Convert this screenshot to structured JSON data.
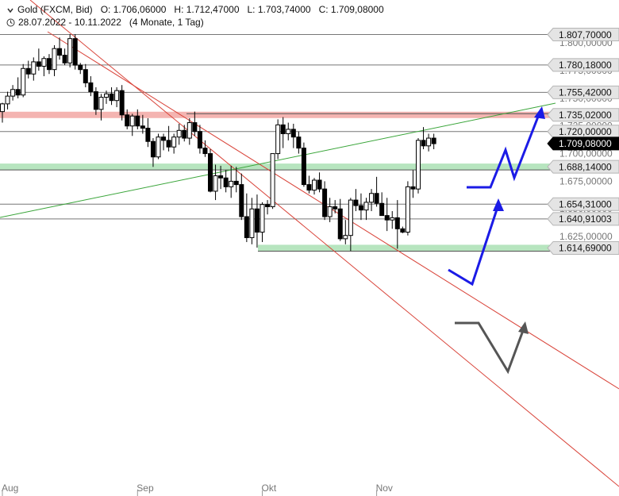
{
  "header": {
    "instrument": "Gold (FXCM, Bid)",
    "open": "O: 1.706,06000",
    "high": "H: 1.712,47000",
    "low": "L: 1.703,74000",
    "close": "C: 1.709,08000",
    "date_range": "28.07.2022 - 10.11.2022",
    "duration": "(4 Monate, 1 Tag)"
  },
  "chart_data": {
    "type": "candlestick",
    "ylim": [
      1605,
      1815
    ],
    "y_ticks": [
      1625,
      1650,
      1675,
      1700,
      1725,
      1750,
      1775,
      1800
    ],
    "y_tick_labels": [
      "1.625,00000",
      "1.650,00000",
      "1.675,00000",
      "1.700,00000",
      "1.725,00000",
      "1.750,00000",
      "1.775,00000",
      "1.800,00000"
    ],
    "x_labels": [
      {
        "label": "Aug",
        "index": 0
      },
      {
        "label": "Sep",
        "index": 26
      },
      {
        "label": "Okt",
        "index": 50
      },
      {
        "label": "Nov",
        "index": 72
      }
    ],
    "candles": [
      [
        1738,
        1746,
        1728,
        1745
      ],
      [
        1745,
        1756,
        1740,
        1752
      ],
      [
        1752,
        1762,
        1748,
        1758
      ],
      [
        1758,
        1769,
        1750,
        1753
      ],
      [
        1753,
        1781,
        1751,
        1777
      ],
      [
        1777,
        1784,
        1768,
        1772
      ],
      [
        1772,
        1787,
        1766,
        1783
      ],
      [
        1783,
        1795,
        1775,
        1779
      ],
      [
        1779,
        1788,
        1770,
        1786
      ],
      [
        1786,
        1790,
        1772,
        1776
      ],
      [
        1776,
        1798,
        1770,
        1795
      ],
      [
        1795,
        1805,
        1785,
        1789
      ],
      [
        1789,
        1795,
        1780,
        1782
      ],
      [
        1782,
        1808,
        1778,
        1804
      ],
      [
        1804,
        1808,
        1776,
        1780
      ],
      [
        1780,
        1782,
        1772,
        1776
      ],
      [
        1776,
        1781,
        1760,
        1764
      ],
      [
        1764,
        1770,
        1752,
        1756
      ],
      [
        1756,
        1760,
        1735,
        1740
      ],
      [
        1740,
        1754,
        1730,
        1751
      ],
      [
        1751,
        1757,
        1745,
        1754
      ],
      [
        1754,
        1760,
        1744,
        1748
      ],
      [
        1748,
        1760,
        1742,
        1757
      ],
      [
        1757,
        1762,
        1730,
        1735
      ],
      [
        1735,
        1740,
        1722,
        1725
      ],
      [
        1725,
        1736,
        1716,
        1734
      ],
      [
        1734,
        1740,
        1722,
        1725
      ],
      [
        1725,
        1735,
        1718,
        1723
      ],
      [
        1723,
        1732,
        1706,
        1711
      ],
      [
        1711,
        1714,
        1688,
        1697
      ],
      [
        1697,
        1718,
        1695,
        1715
      ],
      [
        1715,
        1718,
        1703,
        1712
      ],
      [
        1712,
        1725,
        1702,
        1706
      ],
      [
        1706,
        1718,
        1700,
        1715
      ],
      [
        1715,
        1727,
        1708,
        1721
      ],
      [
        1721,
        1726,
        1711,
        1714
      ],
      [
        1714,
        1732,
        1708,
        1728
      ],
      [
        1728,
        1738,
        1716,
        1720
      ],
      [
        1720,
        1726,
        1700,
        1705
      ],
      [
        1705,
        1712,
        1697,
        1700
      ],
      [
        1700,
        1704,
        1665,
        1666
      ],
      [
        1666,
        1690,
        1658,
        1680
      ],
      [
        1680,
        1689,
        1668,
        1678
      ],
      [
        1678,
        1685,
        1665,
        1670
      ],
      [
        1670,
        1689,
        1660,
        1675
      ],
      [
        1675,
        1688,
        1665,
        1672
      ],
      [
        1672,
        1682,
        1640,
        1643
      ],
      [
        1643,
        1664,
        1620,
        1624
      ],
      [
        1624,
        1660,
        1618,
        1650
      ],
      [
        1650,
        1663,
        1615,
        1629
      ],
      [
        1629,
        1656,
        1620,
        1654
      ],
      [
        1654,
        1658,
        1645,
        1652
      ],
      [
        1652,
        1700,
        1650,
        1700
      ],
      [
        1700,
        1731,
        1695,
        1726
      ],
      [
        1726,
        1733,
        1705,
        1718
      ],
      [
        1718,
        1728,
        1712,
        1722
      ],
      [
        1722,
        1727,
        1705,
        1715
      ],
      [
        1715,
        1720,
        1700,
        1705
      ],
      [
        1705,
        1710,
        1670,
        1672
      ],
      [
        1672,
        1680,
        1664,
        1667
      ],
      [
        1667,
        1678,
        1663,
        1676
      ],
      [
        1676,
        1683,
        1665,
        1668
      ],
      [
        1668,
        1675,
        1640,
        1643
      ],
      [
        1643,
        1660,
        1638,
        1652
      ],
      [
        1652,
        1658,
        1646,
        1650
      ],
      [
        1650,
        1659,
        1621,
        1623
      ],
      [
        1623,
        1640,
        1618,
        1626
      ],
      [
        1626,
        1660,
        1612,
        1658
      ],
      [
        1658,
        1668,
        1648,
        1653
      ],
      [
        1653,
        1664,
        1640,
        1649
      ],
      [
        1649,
        1660,
        1640,
        1656
      ],
      [
        1656,
        1668,
        1648,
        1664
      ],
      [
        1664,
        1679,
        1652,
        1655
      ],
      [
        1655,
        1665,
        1645,
        1644
      ],
      [
        1644,
        1660,
        1630,
        1640
      ],
      [
        1640,
        1648,
        1632,
        1642
      ],
      [
        1642,
        1658,
        1614,
        1632
      ],
      [
        1632,
        1634,
        1628,
        1629
      ],
      [
        1629,
        1675,
        1626,
        1670
      ],
      [
        1670,
        1685,
        1660,
        1668
      ],
      [
        1668,
        1714,
        1664,
        1712
      ],
      [
        1712,
        1724,
        1704,
        1707
      ],
      [
        1707,
        1718,
        1702,
        1714
      ],
      [
        1714,
        1718,
        1704,
        1709
      ]
    ],
    "levels": [
      {
        "value": 1807.7,
        "label": "1.807,70000",
        "style": "line"
      },
      {
        "value": 1780.18,
        "label": "1.780,18000",
        "style": "line"
      },
      {
        "value": 1755.42,
        "label": "1.755,42000",
        "style": "line"
      },
      {
        "value": 1735.02,
        "label": "1.735,02000",
        "style": "red-zone"
      },
      {
        "value": 1720,
        "label": "1.720,00000",
        "style": "line"
      },
      {
        "value": 1709.08,
        "label": "1.709,08000",
        "style": "current"
      },
      {
        "value": 1688.14,
        "label": "1.688,14000",
        "style": "green-zone"
      },
      {
        "value": 1654.31,
        "label": "1.654,31000",
        "style": "line"
      },
      {
        "value": 1640.91003,
        "label": "1.640,91003",
        "style": "line"
      },
      {
        "value": 1614.69,
        "label": "1.614,69000",
        "style": "green-zone"
      }
    ],
    "colors": {
      "candle": "#000000",
      "red_zone": "#f4b4b1",
      "green_zone": "#b7e5bf",
      "trend_red": "#d9443a",
      "trend_green": "#3aa53a",
      "scenario_up": "#1b1be6",
      "scenario_down": "#555555"
    }
  }
}
